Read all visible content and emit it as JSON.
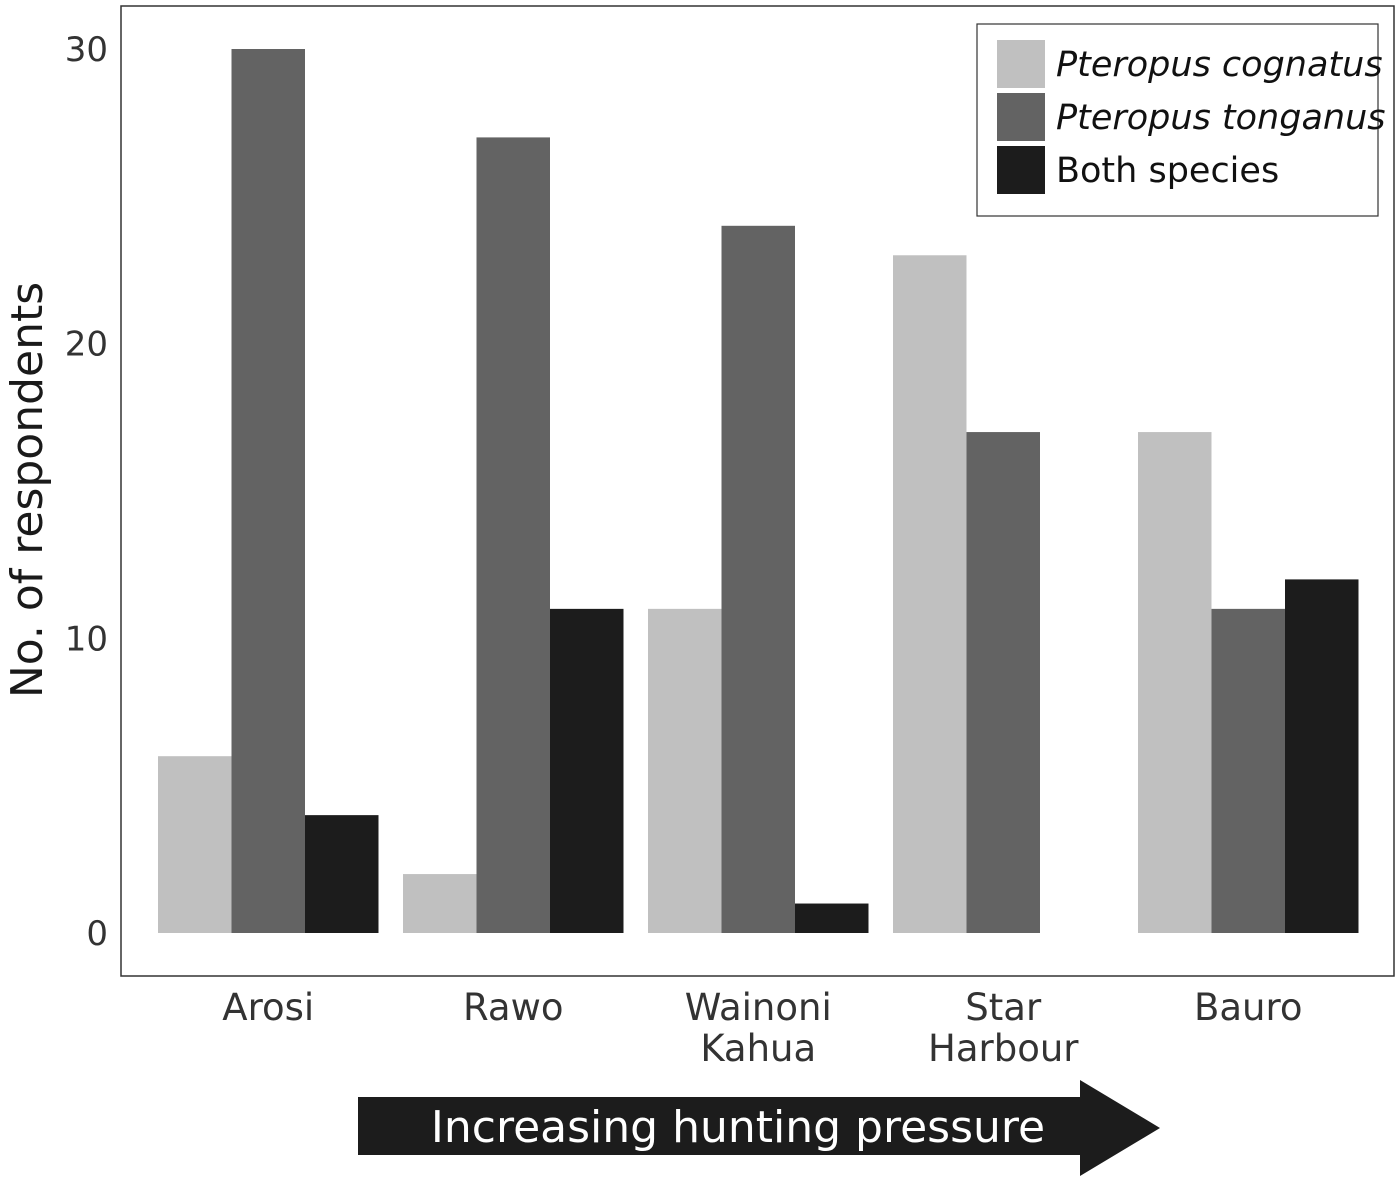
{
  "chart_data": {
    "type": "bar",
    "categories": [
      [
        "Arosi"
      ],
      [
        "Rawo"
      ],
      [
        "Wainoni",
        "Kahua"
      ],
      [
        "Star",
        "Harbour"
      ],
      [
        "Bauro"
      ]
    ],
    "series": [
      {
        "name": "Pteropus cognatus",
        "italic": true,
        "color": "#c0c0c0",
        "values": [
          6,
          2,
          11,
          23,
          17
        ]
      },
      {
        "name": "Pteropus tonganus",
        "italic": true,
        "color": "#636363",
        "values": [
          30,
          27,
          24,
          17,
          11
        ]
      },
      {
        "name": "Both species",
        "italic": false,
        "color": "#1c1c1c",
        "values": [
          4,
          11,
          1,
          0,
          12
        ]
      }
    ],
    "ylabel": "No. of respondents",
    "xlabel": "",
    "ylim": [
      0,
      30
    ],
    "yticks": [
      0,
      10,
      20,
      30
    ],
    "grid": false,
    "legend_position": "top-right",
    "annotation": "Increasing hunting pressure"
  }
}
